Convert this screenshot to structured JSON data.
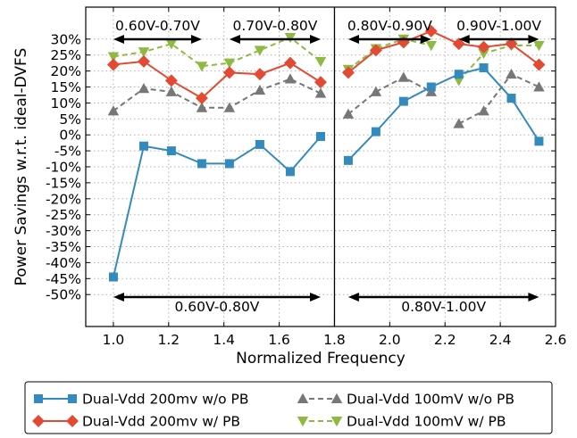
{
  "chart_data": {
    "type": "line",
    "xlabel": "Normalized Frequency",
    "ylabel": "Power Savings w.r.t. ideal-DVFS",
    "xlim": [
      0.9,
      2.6
    ],
    "ylim": [
      -60,
      40
    ],
    "x_ticks": [
      1.0,
      1.2,
      1.4,
      1.6,
      1.8,
      2.0,
      2.2,
      2.4,
      2.6
    ],
    "x_tick_labels": [
      "1.0",
      "1.2",
      "1.4",
      "1.6",
      "1.8",
      "2.0",
      "2.2",
      "2.4",
      "2.6"
    ],
    "y_ticks": [
      -50,
      -45,
      -40,
      -35,
      -30,
      -25,
      -20,
      -15,
      -10,
      -5,
      0,
      5,
      10,
      15,
      20,
      25,
      30
    ],
    "y_tick_labels": [
      "-50%",
      "-45%",
      "-40%",
      "-35%",
      "-30%",
      "-25%",
      "-20%",
      "-15%",
      "-10%",
      "-5%",
      "0%",
      "5%",
      "10%",
      "15%",
      "20%",
      "25%",
      "30%"
    ],
    "grid": true,
    "divider_x": 1.8,
    "series": [
      {
        "name": "Dual-Vdd 200mv w/o PB",
        "color": "#348ABD",
        "marker": "square",
        "linestyle": "solid",
        "segments": [
          [
            [
              1.0,
              -44.5
            ],
            [
              1.11,
              -3.5
            ],
            [
              1.21,
              -5
            ],
            [
              1.32,
              -9
            ],
            [
              1.42,
              -9
            ],
            [
              1.53,
              -3
            ],
            [
              1.64,
              -11.5
            ],
            [
              1.75,
              -0.5
            ]
          ],
          [
            [
              1.85,
              -8
            ],
            [
              1.95,
              1
            ],
            [
              2.05,
              10.5
            ],
            [
              2.15,
              15
            ],
            [
              2.25,
              19
            ],
            [
              2.34,
              21
            ],
            [
              2.44,
              11.5
            ],
            [
              2.54,
              -2
            ]
          ]
        ]
      },
      {
        "name": "Dual-Vdd 200mv w/ PB",
        "color": "#E24A33",
        "marker": "diamond",
        "linestyle": "solid",
        "segments": [
          [
            [
              1.0,
              22
            ],
            [
              1.11,
              23
            ],
            [
              1.21,
              17
            ],
            [
              1.32,
              11.5
            ],
            [
              1.42,
              19.5
            ],
            [
              1.53,
              19
            ],
            [
              1.64,
              22.5
            ],
            [
              1.75,
              16.5
            ]
          ],
          [
            [
              1.85,
              19.5
            ],
            [
              1.95,
              26.5
            ],
            [
              2.05,
              29
            ],
            [
              2.15,
              32.5
            ],
            [
              2.25,
              28.5
            ],
            [
              2.34,
              27.5
            ],
            [
              2.44,
              28.5
            ],
            [
              2.54,
              22
            ]
          ]
        ]
      },
      {
        "name": "Dual-Vdd 100mV w/o PB",
        "color": "#777777",
        "marker": "triangle-up",
        "linestyle": "dashed",
        "segments": [
          [
            [
              1.0,
              7.5
            ],
            [
              1.11,
              14.5
            ],
            [
              1.21,
              13.5
            ],
            [
              1.32,
              8.5
            ],
            [
              1.42,
              8.5
            ],
            [
              1.53,
              14
            ],
            [
              1.64,
              17.5
            ],
            [
              1.75,
              13
            ]
          ],
          [
            [
              1.85,
              6.5
            ],
            [
              1.95,
              13.5
            ],
            [
              2.05,
              18
            ],
            [
              2.15,
              13.5
            ]
          ],
          [
            [
              2.25,
              3.5
            ],
            [
              2.34,
              7.5
            ],
            [
              2.44,
              19
            ],
            [
              2.54,
              15
            ]
          ]
        ]
      },
      {
        "name": "Dual-Vdd 100mV w/ PB",
        "color": "#8EBA42",
        "marker": "triangle-down",
        "linestyle": "dashed",
        "segments": [
          [
            [
              1.0,
              24.5
            ],
            [
              1.11,
              26
            ],
            [
              1.21,
              28.5
            ],
            [
              1.32,
              21.5
            ],
            [
              1.42,
              22.5
            ],
            [
              1.53,
              26.5
            ],
            [
              1.64,
              30.5
            ],
            [
              1.75,
              23
            ]
          ],
          [
            [
              1.85,
              20.5
            ],
            [
              1.95,
              27
            ],
            [
              2.05,
              30
            ],
            [
              2.15,
              28
            ]
          ],
          [
            [
              2.25,
              17
            ],
            [
              2.34,
              25.5
            ],
            [
              2.44,
              28
            ],
            [
              2.54,
              28
            ]
          ]
        ]
      }
    ],
    "range_annotations": [
      {
        "label": "0.60V-0.70V",
        "x_start": 1.0,
        "x_end": 1.32,
        "position": "top"
      },
      {
        "label": "0.70V-0.80V",
        "x_start": 1.42,
        "x_end": 1.75,
        "position": "top"
      },
      {
        "label": "0.80V-0.90V",
        "x_start": 1.85,
        "x_end": 2.15,
        "position": "top"
      },
      {
        "label": "0.90V-1.00V",
        "x_start": 2.25,
        "x_end": 2.54,
        "position": "top"
      },
      {
        "label": "0.60V-0.80V",
        "x_start": 1.0,
        "x_end": 1.75,
        "position": "bottom"
      },
      {
        "label": "0.80V-1.00V",
        "x_start": 1.85,
        "x_end": 2.54,
        "position": "bottom"
      }
    ],
    "legend": {
      "placement": "bottom",
      "columns": 2,
      "entries": [
        "Dual-Vdd 200mv w/o PB",
        "Dual-Vdd 200mv w/ PB",
        "Dual-Vdd 100mV w/o PB",
        "Dual-Vdd 100mV w/ PB"
      ]
    }
  }
}
